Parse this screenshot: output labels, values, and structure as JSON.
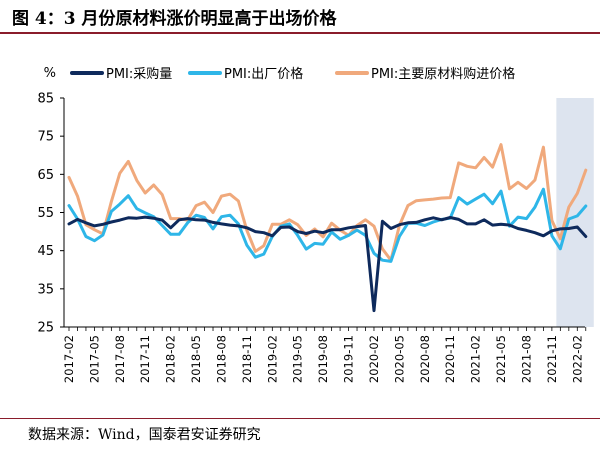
{
  "figure": {
    "title": "图 4：3 月份原材料涨价明显高于出场价格",
    "source": "数据来源：Wind，国泰君安证券研究"
  },
  "chart_data": {
    "type": "line",
    "y_unit": "%",
    "ylim": [
      25,
      85
    ],
    "yticks": [
      25,
      35,
      45,
      55,
      65,
      75,
      85
    ],
    "x_tick_labels": [
      "2017-02",
      "2017-05",
      "2017-08",
      "2017-11",
      "2018-02",
      "2018-05",
      "2018-08",
      "2018-11",
      "2019-02",
      "2019-05",
      "2019-08",
      "2019-11",
      "2020-02",
      "2020-05",
      "2020-08",
      "2020-11",
      "2021-02",
      "2021-05",
      "2021-08",
      "2021-11",
      "2022-02"
    ],
    "highlight_range": [
      "2021-12",
      "2022-03"
    ],
    "grid": false,
    "legend_position": "top",
    "x": [
      "2017-02",
      "2017-03",
      "2017-04",
      "2017-05",
      "2017-06",
      "2017-07",
      "2017-08",
      "2017-09",
      "2017-10",
      "2017-11",
      "2017-12",
      "2018-01",
      "2018-02",
      "2018-03",
      "2018-04",
      "2018-05",
      "2018-06",
      "2018-07",
      "2018-08",
      "2018-09",
      "2018-10",
      "2018-11",
      "2018-12",
      "2019-01",
      "2019-02",
      "2019-03",
      "2019-04",
      "2019-05",
      "2019-06",
      "2019-07",
      "2019-08",
      "2019-09",
      "2019-10",
      "2019-11",
      "2019-12",
      "2020-01",
      "2020-02",
      "2020-03",
      "2020-04",
      "2020-05",
      "2020-06",
      "2020-07",
      "2020-08",
      "2020-09",
      "2020-10",
      "2020-11",
      "2020-12",
      "2021-01",
      "2021-02",
      "2021-03",
      "2021-04",
      "2021-05",
      "2021-06",
      "2021-07",
      "2021-08",
      "2021-09",
      "2021-10",
      "2021-11",
      "2021-12",
      "2022-01",
      "2022-02",
      "2022-03"
    ],
    "series": [
      {
        "name": "PMI:采购量",
        "color": "#0e2a5c",
        "values": [
          52.0,
          53.2,
          52.3,
          51.5,
          51.9,
          52.5,
          53.0,
          53.6,
          53.5,
          53.8,
          53.5,
          53.0,
          51.0,
          53.1,
          53.4,
          53.1,
          53.0,
          52.4,
          52.0,
          51.7,
          51.5,
          51.0,
          50.0,
          49.7,
          48.9,
          51.1,
          51.2,
          50.0,
          49.5,
          50.1,
          49.7,
          50.5,
          50.5,
          51.0,
          51.3,
          51.6,
          29.3,
          52.7,
          50.8,
          51.8,
          52.3,
          52.4,
          53.1,
          53.6,
          53.1,
          53.7,
          53.2,
          52.0,
          52.0,
          53.1,
          51.7,
          51.9,
          51.7,
          50.8,
          50.3,
          49.7,
          48.9,
          50.2,
          50.7,
          50.8,
          51.2,
          48.7
        ]
      },
      {
        "name": "PMI:出厂价格",
        "color": "#2eb6e8",
        "values": [
          56.8,
          53.3,
          48.7,
          47.6,
          49.1,
          55.3,
          57.2,
          59.4,
          56.0,
          54.9,
          53.9,
          51.6,
          49.3,
          49.3,
          52.3,
          54.3,
          53.7,
          50.7,
          53.9,
          54.3,
          52.0,
          46.4,
          43.3,
          44.1,
          48.7,
          51.4,
          52.0,
          49.0,
          45.4,
          46.9,
          46.7,
          49.9,
          48.0,
          49.0,
          50.4,
          49.0,
          44.3,
          42.5,
          42.2,
          48.7,
          52.2,
          52.2,
          51.6,
          52.5,
          53.2,
          53.5,
          58.9,
          57.2,
          58.5,
          59.8,
          57.3,
          60.6,
          51.4,
          53.8,
          53.4,
          56.4,
          61.1,
          48.9,
          45.5,
          53.3,
          54.1,
          56.7
        ]
      },
      {
        "name": "PMI:主要原材料购进价格",
        "color": "#f0a97c",
        "values": [
          64.2,
          59.3,
          51.8,
          50.5,
          49.4,
          57.9,
          65.3,
          68.4,
          63.4,
          60.1,
          62.2,
          59.7,
          53.4,
          53.4,
          53.0,
          56.8,
          57.7,
          55.0,
          59.3,
          59.8,
          58.0,
          50.3,
          44.8,
          46.3,
          51.9,
          51.9,
          53.1,
          51.8,
          49.0,
          50.7,
          48.6,
          52.2,
          50.4,
          49.0,
          51.6,
          53.1,
          51.4,
          45.5,
          42.5,
          51.6,
          56.8,
          58.1,
          58.3,
          58.5,
          58.8,
          58.9,
          68.0,
          67.1,
          66.7,
          69.4,
          66.9,
          72.8,
          61.2,
          62.9,
          61.3,
          63.5,
          72.1,
          52.9,
          48.1,
          56.4,
          60.0,
          66.1
        ]
      }
    ]
  }
}
